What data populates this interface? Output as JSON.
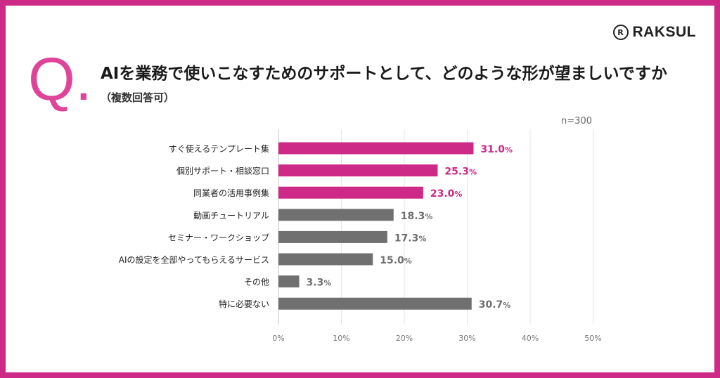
{
  "brand": {
    "name": "RAKSUL",
    "mark": "R"
  },
  "question": {
    "mark": "Q.",
    "title": "AIを業務で使いこなすためのサポートとして、どのような形が望ましいですか",
    "subtitle": "（複数回答可）"
  },
  "colors": {
    "frame": "#cc2a86",
    "highlight": "#cc2a86",
    "muted": "#707070",
    "q": "#e0439a"
  },
  "chart_data": {
    "type": "bar",
    "orientation": "horizontal",
    "sample_note": "n=300",
    "categories": [
      "すぐ使えるテンプレート集",
      "個別サポート・相談窓口",
      "同業者の活用事例集",
      "動画チュートリアル",
      "セミナー・ワークショップ",
      "AIの設定を全部やってもらえるサービス",
      "その他",
      "特に必要ない"
    ],
    "values": [
      31.0,
      25.3,
      23.0,
      18.3,
      17.3,
      15.0,
      3.3,
      30.7
    ],
    "value_labels": [
      "31.0",
      "25.3",
      "23.0",
      "18.3",
      "17.3",
      "15.0",
      "3.3",
      "30.7"
    ],
    "unit": "%",
    "highlighted": [
      true,
      true,
      true,
      false,
      false,
      false,
      false,
      false
    ],
    "xlim": [
      0,
      50
    ],
    "xticks": [
      0,
      10,
      20,
      30,
      40,
      50
    ],
    "xtick_labels": [
      "0%",
      "10%",
      "20%",
      "30%",
      "40%",
      "50%"
    ],
    "grid": true
  }
}
